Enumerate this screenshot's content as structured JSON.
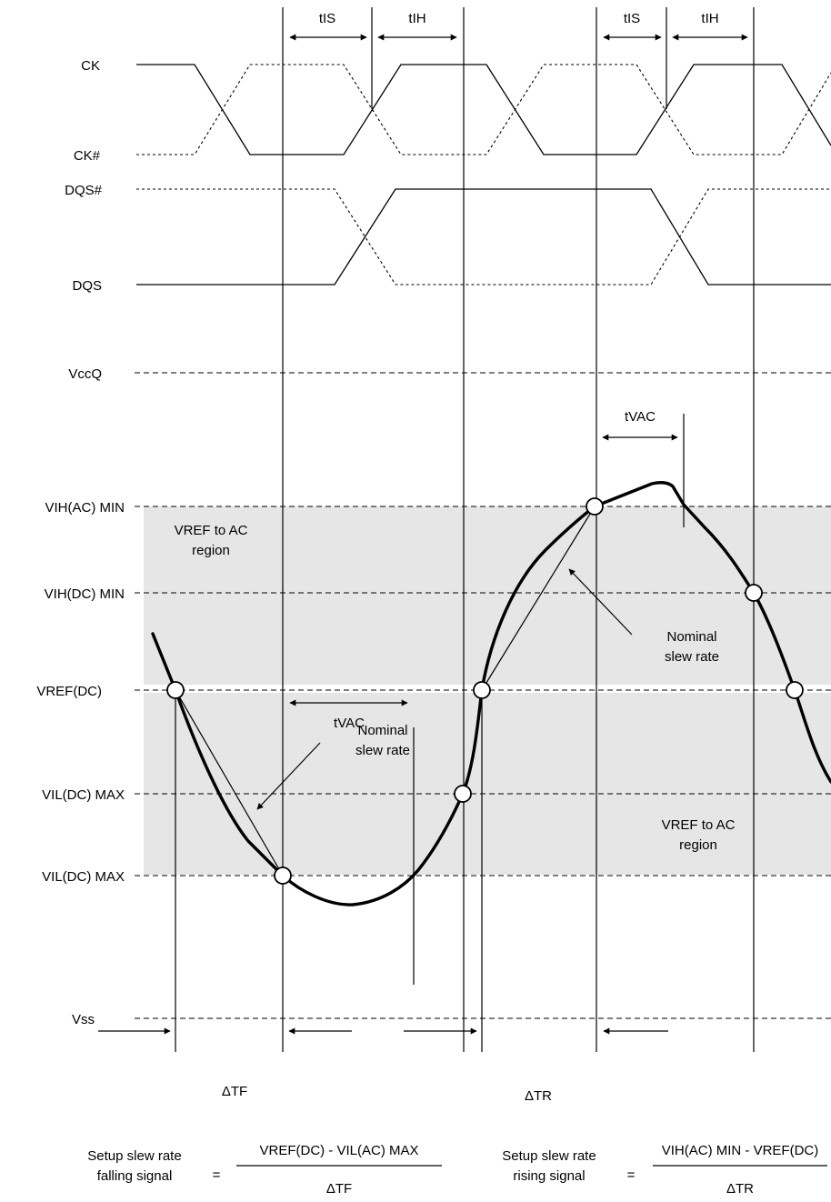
{
  "signals": {
    "ck": "CK",
    "ck_n": "CK#",
    "dqs_n": "DQS#",
    "dqs": "DQS"
  },
  "levels": {
    "vccq": "VccQ",
    "vih_ac_min": "VIH(AC) MIN",
    "vih_dc_min": "VIH(DC) MIN",
    "vref_dc": "VREF(DC)",
    "vil_dc_max_1": "VIL(DC) MAX",
    "vil_dc_max_2": "VIL(DC) MAX",
    "vss": "Vss"
  },
  "timing": {
    "tis": "tIS",
    "tih": "tIH",
    "tvac": "tVAC",
    "delta_tf": "ΔTF",
    "delta_tr": "ΔTR"
  },
  "regions": {
    "vref_to_ac_line1": "VREF to AC",
    "vref_to_ac_line2": "region"
  },
  "annotations": {
    "nominal_line1": "Nominal",
    "nominal_line2": "slew rate"
  },
  "formulas": {
    "falling_label_1": "Setup slew rate",
    "falling_label_2": "falling signal",
    "falling_numerator": "VREF(DC) - VIL(AC) MAX",
    "falling_denominator": "ΔTF",
    "rising_label_1": "Setup slew rate",
    "rising_label_2": "rising signal",
    "rising_numerator": "VIH(AC) MIN - VREF(DC)",
    "rising_denominator": "ΔTR",
    "equals": "="
  }
}
